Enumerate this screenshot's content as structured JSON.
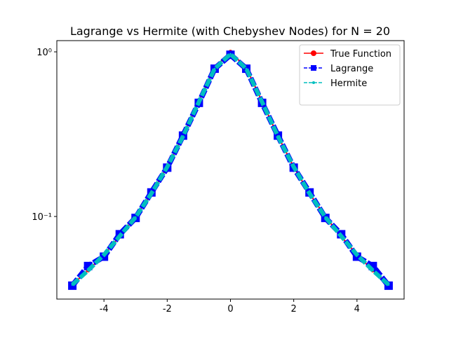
{
  "chart_data": {
    "type": "line",
    "title": "Lagrange vs Hermite (with Chebyshev Nodes) for N = 20",
    "x": [
      -5,
      -4.5,
      -4,
      -3.5,
      -3,
      -2.5,
      -2,
      -1.5,
      -1,
      -0.5,
      0,
      0.5,
      1,
      1.5,
      2,
      2.5,
      3,
      3.5,
      4,
      4.5,
      5
    ],
    "series": [
      {
        "name": "True Function",
        "color": "#ff0000",
        "marker": "circle",
        "dash": false,
        "values": [
          0.0385,
          0.0471,
          0.0588,
          0.0755,
          0.1,
          0.1379,
          0.2,
          0.3077,
          0.5,
          0.8,
          1,
          0.8,
          0.5,
          0.3077,
          0.2,
          0.1379,
          0.1,
          0.0755,
          0.0588,
          0.0471,
          0.0385
        ]
      },
      {
        "name": "Lagrange",
        "color": "#0000ff",
        "marker": "square",
        "dash": true,
        "values": [
          0.038,
          0.05,
          0.057,
          0.078,
          0.098,
          0.14,
          0.198,
          0.31,
          0.49,
          0.79,
          0.96,
          0.79,
          0.49,
          0.31,
          0.198,
          0.14,
          0.098,
          0.078,
          0.057,
          0.05,
          0.038
        ]
      },
      {
        "name": "Hermite",
        "color": "#00bfbf",
        "marker": "dot",
        "dash": true,
        "values": [
          0.0385,
          0.047,
          0.0585,
          0.076,
          0.099,
          0.138,
          0.2,
          0.307,
          0.495,
          0.79,
          0.97,
          0.79,
          0.495,
          0.307,
          0.2,
          0.138,
          0.099,
          0.076,
          0.0585,
          0.047,
          0.0385
        ]
      }
    ],
    "xlim": [
      -5.49,
      5.49
    ],
    "xticks": [
      -4,
      -2,
      0,
      2,
      4
    ],
    "ylim": [
      0.0315,
      1.17
    ],
    "ylog": true,
    "yticks": [
      {
        "value": 0.1,
        "label": "10⁻¹"
      },
      {
        "value": 1,
        "label": "10⁰"
      }
    ],
    "legend": "upper-right"
  }
}
